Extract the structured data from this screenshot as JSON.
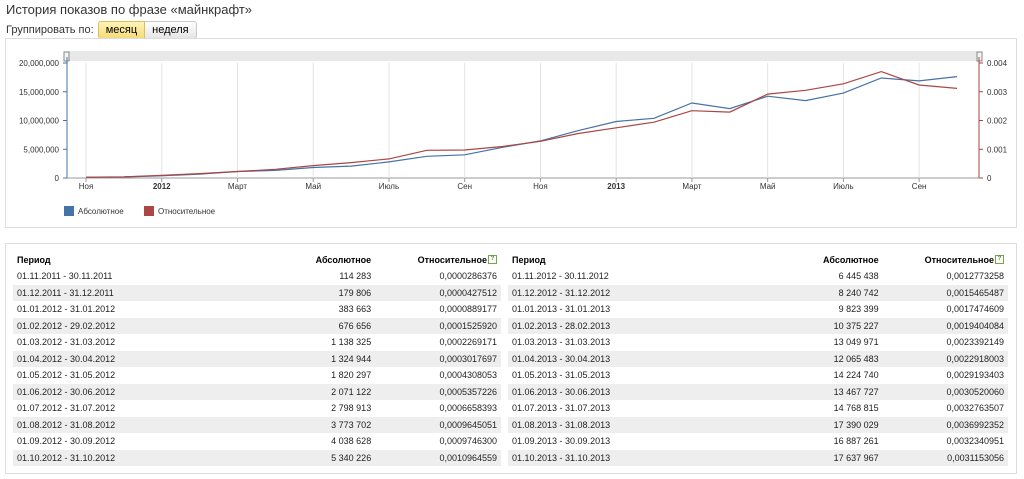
{
  "page": {
    "title": "История показов по фразе «майнкрафт»",
    "group_label": "Группировать по:",
    "group_month": "месяц",
    "group_week": "неделя"
  },
  "chart_data": {
    "type": "line",
    "x": [
      "2011-11",
      "2011-12",
      "2012-01",
      "2012-02",
      "2012-03",
      "2012-04",
      "2012-05",
      "2012-06",
      "2012-07",
      "2012-08",
      "2012-09",
      "2012-10",
      "2012-11",
      "2012-12",
      "2013-01",
      "2013-02",
      "2013-03",
      "2013-04",
      "2013-05",
      "2013-06",
      "2013-07",
      "2013-08",
      "2013-09",
      "2013-10"
    ],
    "x_tick_labels": [
      "Ноя",
      "2012",
      "Март",
      "Май",
      "Июль",
      "Сен",
      "Ноя",
      "2013",
      "Март",
      "Май",
      "Июль",
      "Сен"
    ],
    "y_left_ticks": [
      "0",
      "5,000,000",
      "10,000,000",
      "15,000,000",
      "20,000,000"
    ],
    "y_right_ticks": [
      "0",
      "0.001",
      "0.002",
      "0.003",
      "0.004"
    ],
    "ylim_left": [
      0,
      20000000
    ],
    "ylim_right": [
      0,
      0.004
    ],
    "grid": true,
    "legend_position": "bottom-left",
    "series": [
      {
        "name": "Абсолютное",
        "color": "#4572a7",
        "axis": "left",
        "values": [
          114283,
          179806,
          383663,
          676656,
          1138325,
          1324944,
          1820297,
          2071122,
          2798913,
          3773702,
          4038628,
          5340226,
          6445438,
          8240742,
          9823399,
          10375227,
          13049971,
          12065483,
          14224740,
          13467727,
          14768815,
          17390029,
          16887261,
          17637967
        ]
      },
      {
        "name": "Относительное",
        "color": "#aa4643",
        "axis": "right",
        "values": [
          2.86376e-05,
          4.27512e-05,
          8.89177e-05,
          0.000152592,
          0.0002269171,
          0.0003017697,
          0.0004308053,
          0.0005357226,
          0.0006658393,
          0.0009645051,
          0.00097463,
          0.0010964559,
          0.0012773258,
          0.0015465487,
          0.0017474609,
          0.0019404084,
          0.0023392149,
          0.0022918003,
          0.0029193403,
          0.003052006,
          0.0032763507,
          0.0036992352,
          0.0032340951,
          0.0031153056
        ]
      }
    ]
  },
  "table": {
    "col_period": "Период",
    "col_absolute": "Абсолютное",
    "col_relative": "Относительное",
    "help_icon": "?",
    "left_rows": [
      [
        "01.11.2011 - 30.11.2011",
        "114 283",
        "0,0000286376"
      ],
      [
        "01.12.2011 - 31.12.2011",
        "179 806",
        "0,0000427512"
      ],
      [
        "01.01.2012 - 31.01.2012",
        "383 663",
        "0,0000889177"
      ],
      [
        "01.02.2012 - 29.02.2012",
        "676 656",
        "0,0001525920"
      ],
      [
        "01.03.2012 - 31.03.2012",
        "1 138 325",
        "0,0002269171"
      ],
      [
        "01.04.2012 - 30.04.2012",
        "1 324 944",
        "0,0003017697"
      ],
      [
        "01.05.2012 - 31.05.2012",
        "1 820 297",
        "0,0004308053"
      ],
      [
        "01.06.2012 - 30.06.2012",
        "2 071 122",
        "0,0005357226"
      ],
      [
        "01.07.2012 - 31.07.2012",
        "2 798 913",
        "0,0006658393"
      ],
      [
        "01.08.2012 - 31.08.2012",
        "3 773 702",
        "0,0009645051"
      ],
      [
        "01.09.2012 - 30.09.2012",
        "4 038 628",
        "0,0009746300"
      ],
      [
        "01.10.2012 - 31.10.2012",
        "5 340 226",
        "0,0010964559"
      ]
    ],
    "right_rows": [
      [
        "01.11.2012 - 30.11.2012",
        "6 445 438",
        "0,0012773258"
      ],
      [
        "01.12.2012 - 31.12.2012",
        "8 240 742",
        "0,0015465487"
      ],
      [
        "01.01.2013 - 31.01.2013",
        "9 823 399",
        "0,0017474609"
      ],
      [
        "01.02.2013 - 28.02.2013",
        "10 375 227",
        "0,0019404084"
      ],
      [
        "01.03.2013 - 31.03.2013",
        "13 049 971",
        "0,0023392149"
      ],
      [
        "01.04.2013 - 30.04.2013",
        "12 065 483",
        "0,0022918003"
      ],
      [
        "01.05.2013 - 31.05.2013",
        "14 224 740",
        "0,0029193403"
      ],
      [
        "01.06.2013 - 30.06.2013",
        "13 467 727",
        "0,0030520060"
      ],
      [
        "01.07.2013 - 31.07.2013",
        "14 768 815",
        "0,0032763507"
      ],
      [
        "01.08.2013 - 31.08.2013",
        "17 390 029",
        "0,0036992352"
      ],
      [
        "01.09.2013 - 30.09.2013",
        "16 887 261",
        "0,0032340951"
      ],
      [
        "01.10.2013 - 31.10.2013",
        "17 637 967",
        "0,0031153056"
      ]
    ]
  }
}
